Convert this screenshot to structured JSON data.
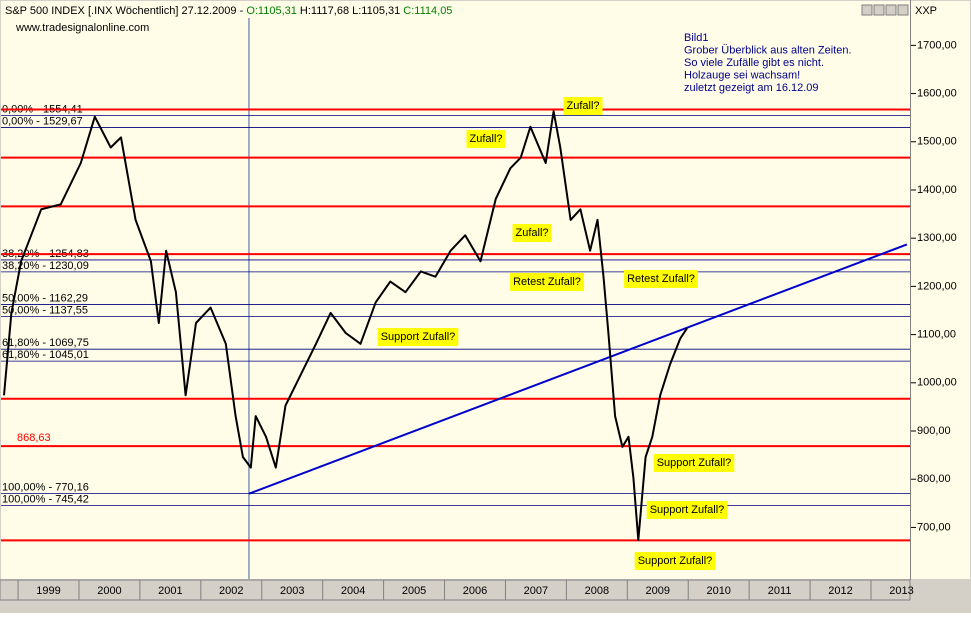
{
  "chart_data": {
    "type": "line",
    "title": [
      {
        "text": "S&P 500 INDEX [.INX  Wöchentlich] 27.12.2009 - ",
        "color": "#000000"
      },
      {
        "text": "O:1105,31",
        "color": "#008000"
      },
      {
        "text": " H:1117,68 L:1105,31 ",
        "color": "#000000"
      },
      {
        "text": "C:1114,05",
        "color": "#008000"
      }
    ],
    "subtitle": "www.tradesignalonline.com",
    "panel_label": "XXP",
    "note": [
      "Bild1",
      "Grober Überblick aus alten Zeiten.",
      "So viele Zufälle gibt es nicht.",
      "Holzauge sei wachsam!",
      "zuletzt gezeigt am 16.12.09"
    ],
    "xlim": [
      1998.72,
      2013.64
    ],
    "xticks": [
      1999,
      2000,
      2001,
      2002,
      2003,
      2004,
      2005,
      2006,
      2007,
      2008,
      2009,
      2010,
      2011,
      2012,
      2013
    ],
    "ylim": [
      593,
      1792
    ],
    "yticks": [
      {
        "value": 700,
        "label": "700,00"
      },
      {
        "value": 800,
        "label": "800,00"
      },
      {
        "value": 900,
        "label": "900,00"
      },
      {
        "value": 1000,
        "label": "1000,00"
      },
      {
        "value": 1100,
        "label": "1100,00"
      },
      {
        "value": 1200,
        "label": "1200,00"
      },
      {
        "value": 1300,
        "label": "1300,00"
      },
      {
        "value": 1400,
        "label": "1400,00"
      },
      {
        "value": 1500,
        "label": "1500,00"
      },
      {
        "value": 1600,
        "label": "1600,00"
      },
      {
        "value": 1700,
        "label": "1700,00"
      }
    ],
    "series": [
      {
        "name": "S&P 500",
        "color": "#000000",
        "x": [
          1998.77,
          1998.89,
          1999.05,
          1999.38,
          1999.7,
          2000.03,
          2000.26,
          2000.52,
          2000.69,
          2000.93,
          2001.18,
          2001.31,
          2001.43,
          2001.59,
          2001.75,
          2001.92,
          2002.16,
          2002.41,
          2002.57,
          2002.69,
          2002.82,
          2002.9,
          2003.07,
          2003.23,
          2003.39,
          2003.64,
          2003.89,
          2004.13,
          2004.38,
          2004.62,
          2004.87,
          2005.11,
          2005.36,
          2005.61,
          2005.85,
          2006.1,
          2006.34,
          2006.59,
          2006.84,
          2007.08,
          2007.25,
          2007.41,
          2007.66,
          2007.79,
          2007.9,
          2008.07,
          2008.23,
          2008.39,
          2008.51,
          2008.61,
          2008.69,
          2008.8,
          2008.92,
          2009.02,
          2009.1,
          2009.18,
          2009.3,
          2009.41,
          2009.54,
          2009.7,
          2009.87,
          2009.98
        ],
        "values": [
          974,
          1145,
          1252,
          1360,
          1370,
          1456,
          1552,
          1488,
          1509,
          1338,
          1252,
          1124,
          1274,
          1188,
          974,
          1124,
          1156,
          1081,
          931,
          846,
          824,
          931,
          888,
          824,
          953,
          1017,
          1081,
          1145,
          1103,
          1081,
          1167,
          1210,
          1188,
          1231,
          1220,
          1274,
          1306,
          1252,
          1381,
          1445,
          1467,
          1531,
          1456,
          1563,
          1488,
          1338,
          1360,
          1274,
          1338,
          1220,
          1103,
          931,
          867,
          888,
          803,
          674,
          846,
          888,
          974,
          1038,
          1092,
          1113
        ]
      }
    ],
    "levels_color": "#ff0000",
    "levels": [
      1567,
      1467,
      1366,
      1267,
      967,
      {
        "value": 868.63,
        "label": "868,63"
      },
      673
    ],
    "fib_color": "#000080",
    "fib_lines": [
      {
        "value": 1554.41,
        "label": "0,00% - 1554,41"
      },
      {
        "value": 1529.67,
        "label": "0,00% - 1529,67"
      },
      {
        "value": 1254.83,
        "label": "38,20% - 1254,83"
      },
      {
        "value": 1230.09,
        "label": "38,20% - 1230,09"
      },
      {
        "value": 1162.29,
        "label": "50,00% - 1162,29"
      },
      {
        "value": 1137.55,
        "label": "50,00% - 1137,55"
      },
      {
        "value": 1069.75,
        "label": "61,80% - 1069,75"
      },
      {
        "value": 1045.01,
        "label": "61,80% - 1045,01"
      },
      {
        "value": 770.16,
        "label": "100,00% - 770,16"
      },
      {
        "value": 745.42,
        "label": "100,00% - 745,42"
      }
    ],
    "trendline": {
      "color": "#0000cc",
      "x": [
        2002.79,
        2013.59
      ],
      "values": [
        770,
        1287
      ]
    },
    "vline": 2002.79,
    "annotations": [
      "Zufall?",
      "Zufall?",
      "Zufall?",
      "Retest Zufall?",
      "Retest Zufall?",
      "Support Zufall?",
      "Support Zufall?",
      "Support Zufall?",
      "Support Zufall?"
    ]
  }
}
